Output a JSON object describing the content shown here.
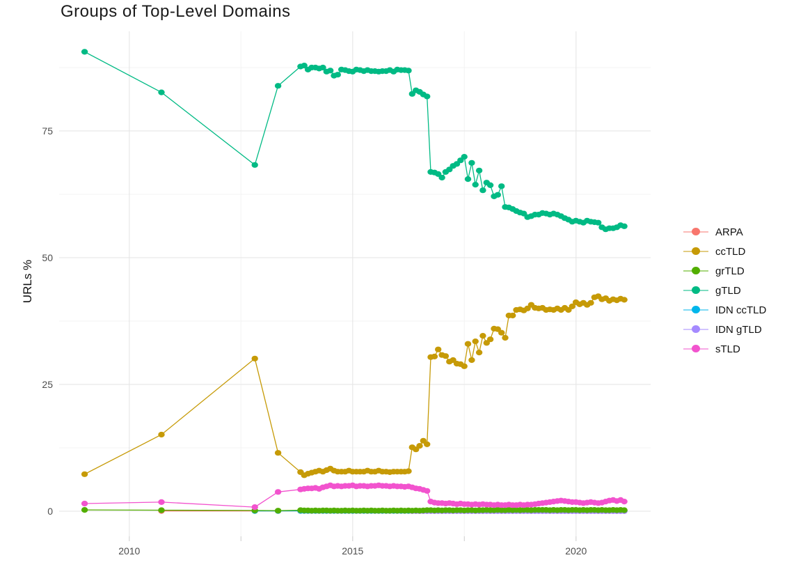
{
  "header": {
    "title": "Groups of Top-Level Domains"
  },
  "y_axis": {
    "label": "URLs %",
    "tick_labels": [
      "0",
      "25",
      "50",
      "75"
    ],
    "tick_values": [
      0,
      25,
      50,
      75
    ],
    "minor_values": [
      12.5,
      37.5,
      62.5,
      87.5
    ],
    "tick_color": "#4d4d4d"
  },
  "x_axis": {
    "tick_labels": [
      "2010",
      "2015",
      "2020"
    ],
    "tick_values": [
      2010,
      2015,
      2020
    ],
    "minor_values": [
      2012.5,
      2017.5
    ],
    "axis_tick_marks": [
      2010,
      2012.5,
      2015,
      2017.5,
      2020
    ],
    "tick_color": "#4d4d4d"
  },
  "style": {
    "grid_major_color": "#e6e6e6",
    "grid_minor_color": "#f3f3f3",
    "axis_tick_mark_color": "#d4d4d4",
    "background": "#ffffff"
  },
  "chart_data": {
    "type": "line",
    "title": "Groups of Top-Level Domains",
    "xlabel": "",
    "ylabel": "URLs %",
    "x_domain": [
      2008.43,
      2021.67
    ],
    "y_domain": [
      -4.95,
      94.64
    ],
    "grid": true,
    "legend_position": "right",
    "marker": {
      "rx": 4.7,
      "ry": 4.1,
      "line_width": 1.3
    },
    "series": [
      {
        "name": "ARPA",
        "color": "#F8766D",
        "z": 0,
        "segments": [
          {
            "points": [
              [
                2010.72,
                0.05
              ],
              [
                2012.81,
                0.05
              ],
              [
                2013.33,
                0.05
              ]
            ]
          },
          {
            "x0": 2013.833,
            "dx": 0.0833,
            "n": 88,
            "const": 0.05
          }
        ]
      },
      {
        "name": "ccTLD",
        "color": "#C69A06",
        "z": 4,
        "segments": [
          {
            "points": [
              [
                2009.0,
                7.3
              ],
              [
                2010.72,
                15.1
              ],
              [
                2012.81,
                30.1
              ],
              [
                2013.33,
                11.5
              ]
            ]
          },
          {
            "x0": 2013.833,
            "dx": 0.0833,
            "values": [
              7.7,
              7.1,
              7.4,
              7.6,
              7.8,
              8.0,
              7.8,
              8.1,
              8.4,
              8.0,
              7.8,
              7.8,
              7.8,
              8.0,
              7.8,
              7.8,
              7.8,
              7.8,
              8.0,
              7.8,
              7.8,
              8.0,
              7.8,
              7.8,
              7.7,
              7.8,
              7.8,
              7.8,
              7.8,
              7.9,
              12.6,
              12.2,
              12.9,
              13.9,
              13.2,
              30.4,
              30.5,
              31.9,
              30.8,
              30.6,
              29.5,
              29.8,
              29.1,
              29.0,
              28.6,
              33.0,
              29.8,
              33.5,
              31.3,
              34.6,
              33.2,
              33.9,
              36.0,
              35.9,
              35.2,
              34.2,
              38.6,
              38.6,
              39.7,
              39.8,
              39.6,
              40.0,
              40.7,
              40.1,
              40.0,
              40.1,
              39.7,
              39.8,
              39.7,
              40.0,
              39.7,
              40.1,
              39.7,
              40.4,
              41.2,
              40.8,
              41.1,
              40.7,
              41.1,
              42.2,
              42.4,
              41.8,
              42.0,
              41.5,
              41.8,
              41.6,
              41.9,
              41.7
            ]
          }
        ]
      },
      {
        "name": "grTLD",
        "color": "#52AE00",
        "z": 3,
        "segments": [
          {
            "points": [
              [
                2009.0,
                0.25
              ],
              [
                2010.72,
                0.2
              ],
              [
                2012.81,
                0.15
              ],
              [
                2013.33,
                0.1
              ]
            ]
          },
          {
            "x0": 2013.833,
            "dx": 0.0833,
            "values": [
              0.2,
              0.15,
              0.15,
              0.1,
              0.15,
              0.1,
              0.15,
              0.15,
              0.1,
              0.15,
              0.1,
              0.1,
              0.15,
              0.1,
              0.15,
              0.1,
              0.1,
              0.15,
              0.1,
              0.15,
              0.1,
              0.1,
              0.15,
              0.1,
              0.1,
              0.15,
              0.1,
              0.15,
              0.1,
              0.15,
              0.1,
              0.15,
              0.1,
              0.15,
              0.2,
              0.2,
              0.15,
              0.2,
              0.15,
              0.2,
              0.2,
              0.15,
              0.2,
              0.2,
              0.15,
              0.2,
              0.2,
              0.15,
              0.2,
              0.2,
              0.25,
              0.2,
              0.2,
              0.25,
              0.2,
              0.2,
              0.25,
              0.2,
              0.25,
              0.2,
              0.25,
              0.25,
              0.2,
              0.25,
              0.25,
              0.25,
              0.25,
              0.2,
              0.25,
              0.2,
              0.25,
              0.25,
              0.2,
              0.25,
              0.25,
              0.2,
              0.25,
              0.2,
              0.25,
              0.25,
              0.2,
              0.25,
              0.2,
              0.2,
              0.25,
              0.2,
              0.25,
              0.2
            ]
          }
        ]
      },
      {
        "name": "gTLD",
        "color": "#00BA84",
        "z": 5,
        "segments": [
          {
            "points": [
              [
                2009.0,
                90.6
              ],
              [
                2010.72,
                82.6
              ],
              [
                2012.81,
                68.3
              ],
              [
                2013.33,
                83.9
              ]
            ]
          },
          {
            "x0": 2013.833,
            "dx": 0.0833,
            "values": [
              87.7,
              87.9,
              87.1,
              87.5,
              87.5,
              87.3,
              87.5,
              86.7,
              86.9,
              85.9,
              86.1,
              87.1,
              87.0,
              86.8,
              86.7,
              87.1,
              87.0,
              86.8,
              87.0,
              86.8,
              86.8,
              86.7,
              86.8,
              86.8,
              87.0,
              86.7,
              87.1,
              87.0,
              87.0,
              86.9,
              82.3,
              83.0,
              82.7,
              82.2,
              81.8,
              66.9,
              66.8,
              66.5,
              65.8,
              66.9,
              67.4,
              68.1,
              68.5,
              69.2,
              69.9,
              65.5,
              68.7,
              64.4,
              67.2,
              63.3,
              64.8,
              64.3,
              62.1,
              62.4,
              64.1,
              60.0,
              59.9,
              59.6,
              59.2,
              58.9,
              58.7,
              58.0,
              58.2,
              58.5,
              58.5,
              58.8,
              58.7,
              58.5,
              58.7,
              58.5,
              58.2,
              57.8,
              57.5,
              57.1,
              57.3,
              57.1,
              56.9,
              57.3,
              57.1,
              57.0,
              56.9,
              56.0,
              55.6,
              55.8,
              55.8,
              56.0,
              56.4,
              56.2
            ]
          }
        ]
      },
      {
        "name": "IDN ccTLD",
        "color": "#00B6EB",
        "z": 1,
        "segments": [
          {
            "points": [
              [
                2012.81,
                0.05
              ],
              [
                2013.33,
                0.05
              ]
            ]
          },
          {
            "x0": 2013.833,
            "dx": 0.0833,
            "n": 88,
            "const": 0.07
          }
        ]
      },
      {
        "name": "IDN gTLD",
        "color": "#A58AFF",
        "z": 2,
        "segments": [
          {
            "x0": 2016.332,
            "dx": 0.0833,
            "n": 58,
            "const": 0.02
          }
        ]
      },
      {
        "name": "sTLD",
        "color": "#F253CE",
        "z": 6,
        "segments": [
          {
            "points": [
              [
                2009.0,
                1.5
              ],
              [
                2010.72,
                1.8
              ],
              [
                2012.81,
                0.8
              ],
              [
                2013.33,
                3.8
              ]
            ]
          },
          {
            "x0": 2013.833,
            "dx": 0.0833,
            "values": [
              4.3,
              4.4,
              4.5,
              4.5,
              4.6,
              4.4,
              4.7,
              4.9,
              5.1,
              4.9,
              5.0,
              4.9,
              5.0,
              5.0,
              5.1,
              4.9,
              5.0,
              5.0,
              4.9,
              5.0,
              5.0,
              5.1,
              5.0,
              5.0,
              4.9,
              5.0,
              4.9,
              4.9,
              4.8,
              4.9,
              4.7,
              4.5,
              4.4,
              4.2,
              4.0,
              1.9,
              1.7,
              1.6,
              1.6,
              1.5,
              1.6,
              1.5,
              1.4,
              1.5,
              1.4,
              1.4,
              1.3,
              1.4,
              1.3,
              1.4,
              1.3,
              1.3,
              1.2,
              1.3,
              1.2,
              1.2,
              1.3,
              1.2,
              1.2,
              1.3,
              1.2,
              1.3,
              1.3,
              1.4,
              1.5,
              1.6,
              1.7,
              1.8,
              1.9,
              2.0,
              2.1,
              2.0,
              1.9,
              1.8,
              1.8,
              1.7,
              1.6,
              1.7,
              1.8,
              1.7,
              1.6,
              1.7,
              1.9,
              2.1,
              2.2,
              2.0,
              2.2,
              1.9
            ]
          }
        ]
      }
    ]
  }
}
